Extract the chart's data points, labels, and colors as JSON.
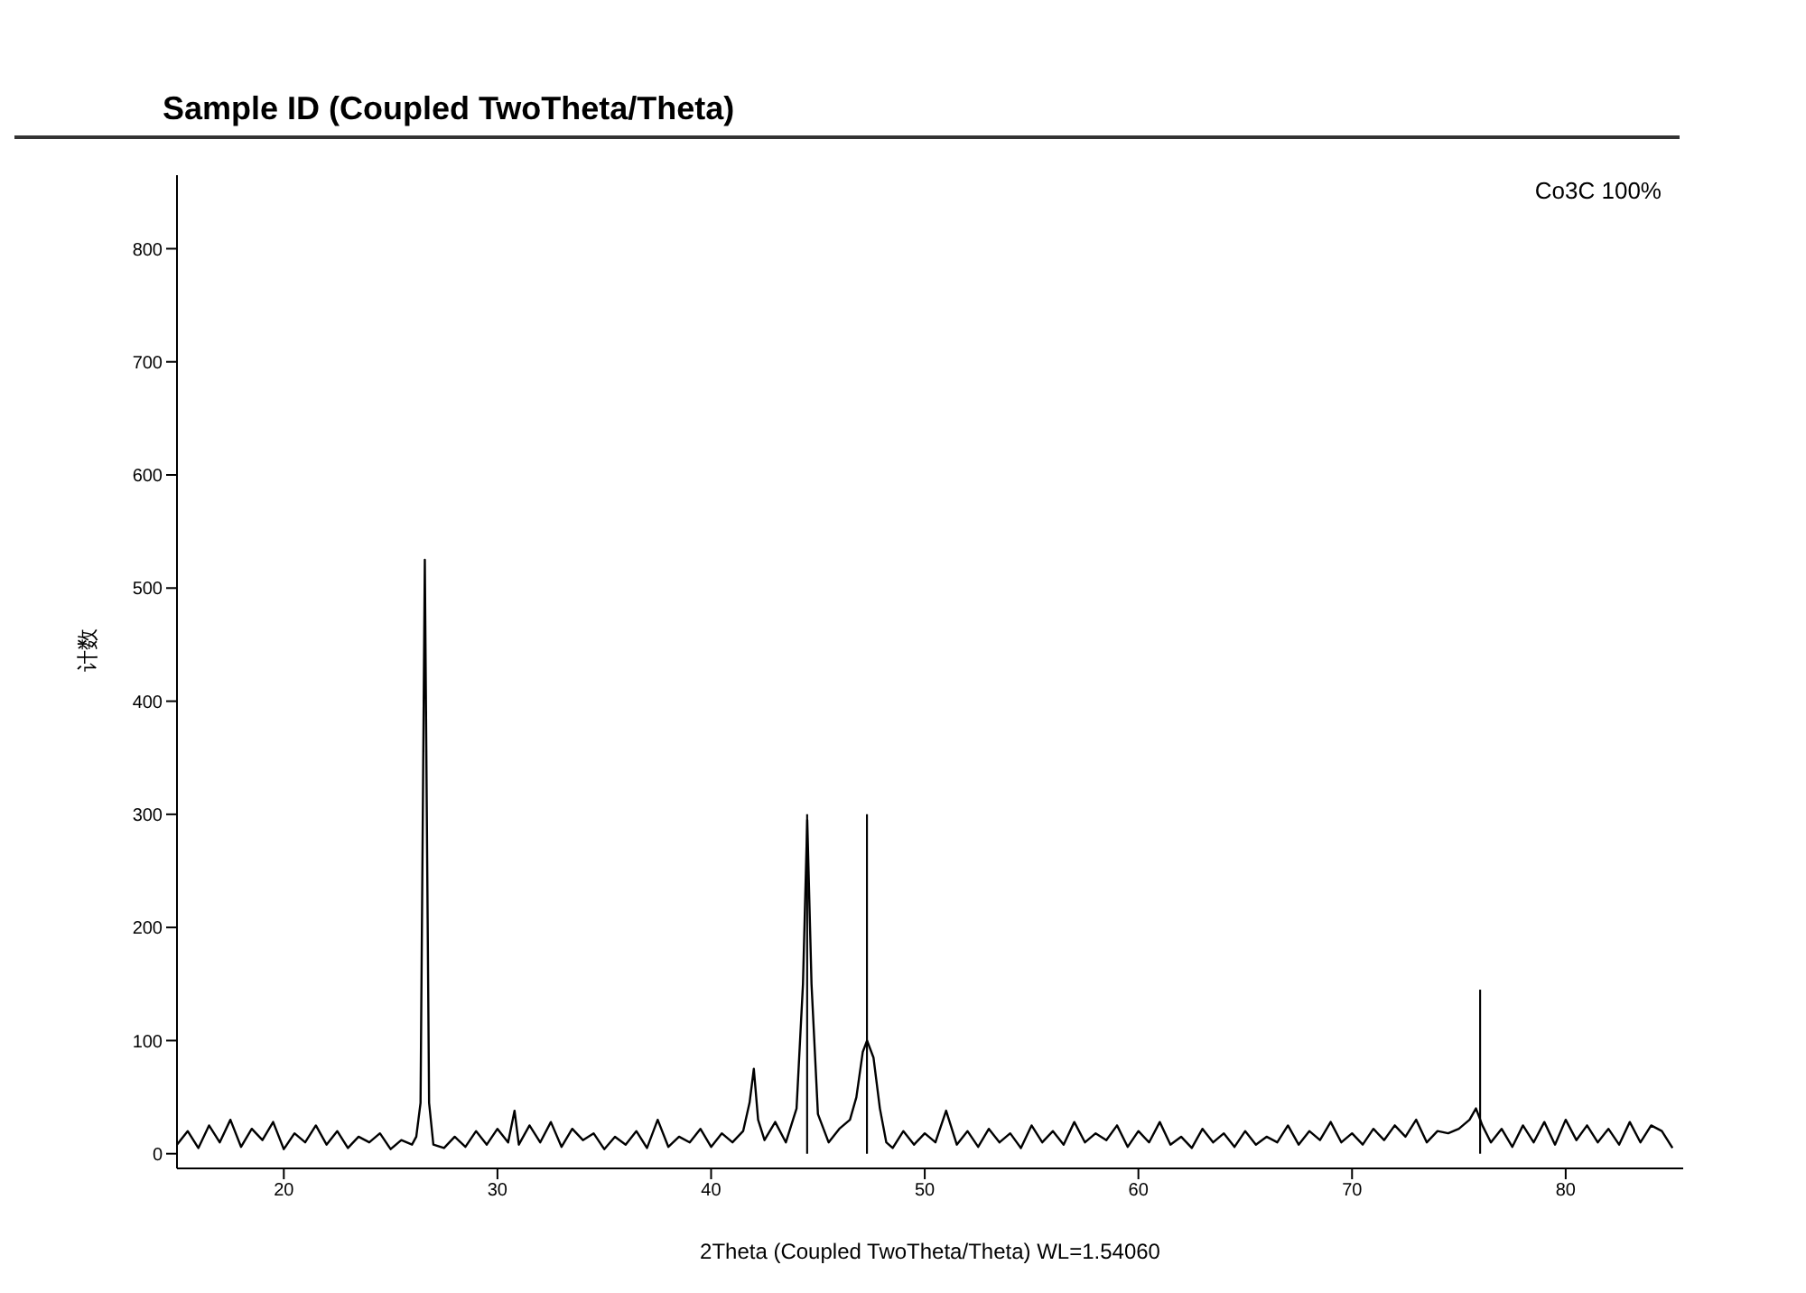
{
  "chart_data": {
    "type": "line",
    "title": "Sample ID (Coupled TwoTheta/Theta)",
    "xlabel": "2Theta (Coupled TwoTheta/Theta) WL=1.54060",
    "ylabel": "计数",
    "annotations": [
      "Co3C   100%"
    ],
    "series": [
      {
        "color": "#000000",
        "x": [
          15,
          15.5,
          16,
          16.5,
          17,
          17.5,
          18,
          18.5,
          19,
          19.5,
          20,
          20.5,
          21,
          21.5,
          22,
          22.5,
          23,
          23.5,
          24,
          24.5,
          25,
          25.5,
          26,
          26.2,
          26.4,
          26.6,
          26.8,
          27,
          27.5,
          28,
          28.5,
          29,
          29.5,
          30,
          30.5,
          30.8,
          31,
          31.5,
          32,
          32.5,
          33,
          33.5,
          34,
          34.5,
          35,
          35.5,
          36,
          36.5,
          37,
          37.5,
          38,
          38.5,
          39,
          39.5,
          40,
          40.5,
          41,
          41.5,
          41.8,
          42,
          42.2,
          42.5,
          43,
          43.5,
          44,
          44.3,
          44.5,
          44.7,
          45,
          45.5,
          46,
          46.5,
          46.8,
          47.1,
          47.3,
          47.6,
          47.9,
          48.2,
          48.5,
          49,
          49.5,
          50,
          50.5,
          51,
          51.5,
          52,
          52.5,
          53,
          53.5,
          54,
          54.5,
          55,
          55.5,
          56,
          56.5,
          57,
          57.5,
          58,
          58.5,
          59,
          59.5,
          60,
          60.5,
          61,
          61.5,
          62,
          62.5,
          63,
          63.5,
          64,
          64.5,
          65,
          65.5,
          66,
          66.5,
          67,
          67.5,
          68,
          68.5,
          69,
          69.5,
          70,
          70.5,
          71,
          71.5,
          72,
          72.5,
          73,
          73.5,
          74,
          74.5,
          75,
          75.5,
          75.8,
          76.1,
          76.5,
          77,
          77.5,
          78,
          78.5,
          79,
          79.5,
          80,
          80.5,
          81,
          81.5,
          82,
          82.5,
          83,
          83.5,
          84,
          84.5,
          85
        ],
        "values": [
          8,
          20,
          5,
          25,
          10,
          30,
          6,
          22,
          12,
          28,
          4,
          18,
          10,
          25,
          8,
          20,
          5,
          15,
          10,
          18,
          4,
          12,
          8,
          15,
          45,
          525,
          45,
          8,
          5,
          15,
          6,
          20,
          8,
          22,
          10,
          38,
          8,
          25,
          10,
          28,
          6,
          22,
          12,
          18,
          4,
          15,
          8,
          20,
          5,
          30,
          6,
          15,
          10,
          22,
          6,
          18,
          10,
          20,
          45,
          75,
          30,
          12,
          28,
          10,
          40,
          150,
          295,
          150,
          35,
          10,
          22,
          30,
          50,
          90,
          100,
          85,
          40,
          10,
          5,
          20,
          8,
          18,
          10,
          38,
          8,
          20,
          6,
          22,
          10,
          18,
          5,
          25,
          10,
          20,
          8,
          28,
          10,
          18,
          12,
          25,
          6,
          20,
          10,
          28,
          8,
          15,
          5,
          22,
          10,
          18,
          6,
          20,
          8,
          15,
          10,
          25,
          8,
          20,
          12,
          28,
          10,
          18,
          8,
          22,
          12,
          25,
          15,
          30,
          10,
          20,
          18,
          22,
          30,
          40,
          25,
          10,
          22,
          6,
          25,
          10,
          28,
          8,
          30,
          12,
          25,
          10,
          22,
          8,
          28,
          10,
          25,
          20,
          5
        ]
      },
      {
        "type": "bar",
        "color": "#000000",
        "x": [
          44.5,
          47.3,
          76.0
        ],
        "values": [
          300,
          300,
          145
        ]
      }
    ],
    "xlim": [
      15,
      85.5
    ],
    "xticks": [
      20,
      30,
      40,
      50,
      60,
      70,
      80
    ],
    "ylim": [
      -13,
      865
    ],
    "yticks": [
      0,
      100,
      200,
      300,
      400,
      500,
      600,
      700,
      800
    ],
    "grid": false,
    "marker": "none",
    "line_style": "solid"
  }
}
